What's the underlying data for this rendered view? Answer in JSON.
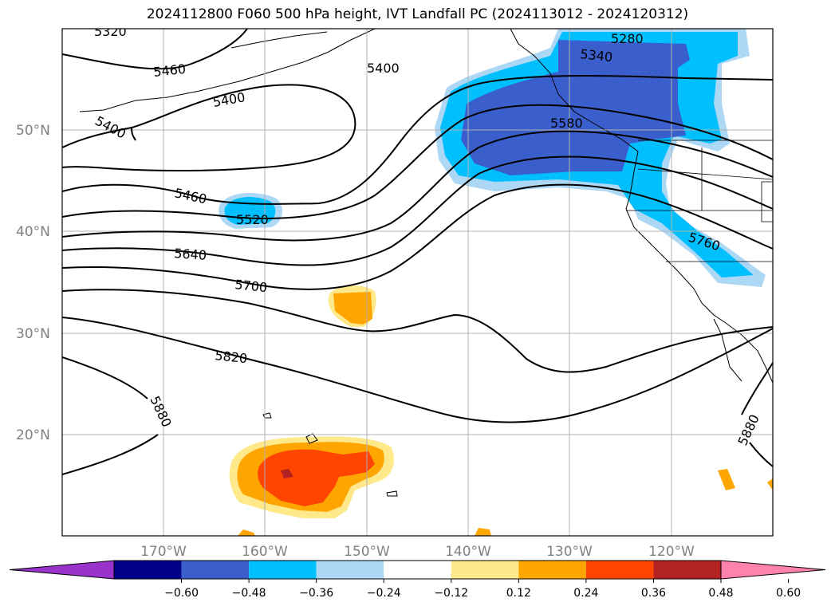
{
  "title": "2024112800 F060 500 hPa height, IVT Landfall PC (2024113012 - 2024120312)",
  "lat_labels": [
    "50°N",
    "40°N",
    "30°N",
    "20°N"
  ],
  "lon_labels": [
    "170°W",
    "160°W",
    "150°W",
    "140°W",
    "130°W",
    "120°W"
  ],
  "contour_labels": [
    "5320",
    "5460",
    "5400",
    "5400",
    "5400",
    "5460",
    "5520",
    "5640",
    "5700",
    "5820",
    "5880",
    "5280",
    "5340",
    "5580",
    "5760",
    "5880"
  ],
  "colorbar": {
    "ticks": [
      "−0.60",
      "−0.48",
      "−0.36",
      "−0.24",
      "−0.12",
      "0.12",
      "0.24",
      "0.36",
      "0.48",
      "0.60"
    ],
    "colors": [
      "#9933cc",
      "#00008b",
      "#3a5fcd",
      "#00bfff",
      "#add8f5",
      "#ffffff",
      "#ffe98a",
      "#ffa500",
      "#ff4500",
      "#b22222",
      "#ff82ab"
    ]
  }
}
